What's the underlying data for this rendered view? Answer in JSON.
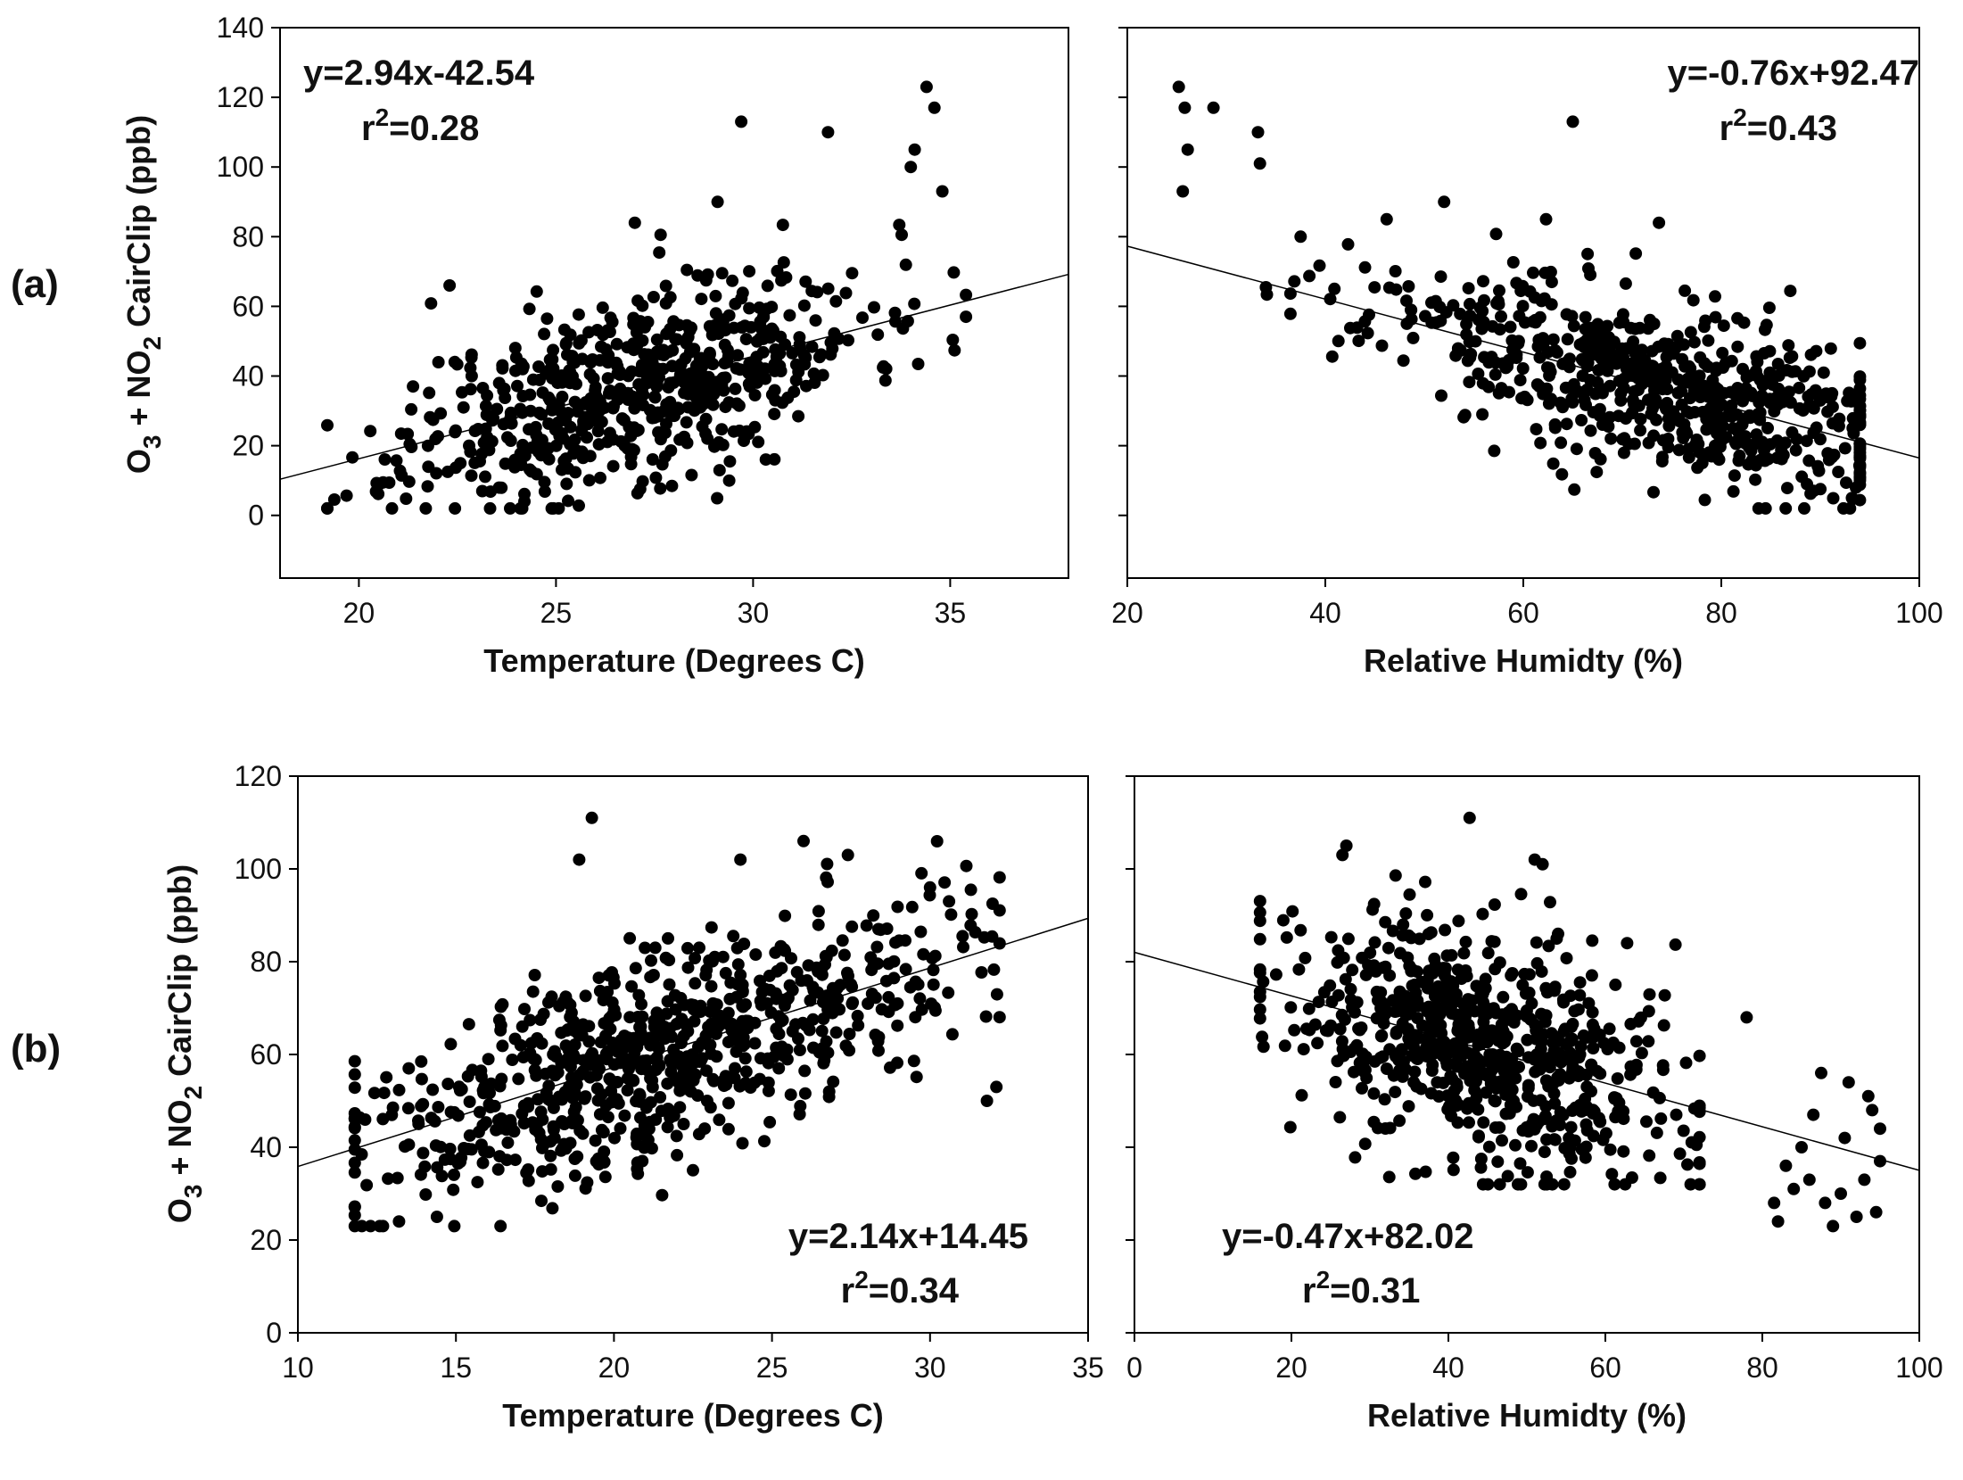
{
  "figure": {
    "panel_a_label": "(a)",
    "panel_b_label": "(b)",
    "ylabel_parts": [
      "O",
      "3",
      " + NO",
      "2",
      " CairClip (ppb)"
    ]
  },
  "chart_data": [
    {
      "id": "a-temp",
      "type": "scatter",
      "xlabel": "Temperature (Degrees C)",
      "ylabel": "O3 + NO2 CairClip (ppb)",
      "xlim": [
        18,
        38
      ],
      "ylim": [
        -18,
        140
      ],
      "xticks": [
        20,
        25,
        30,
        35
      ],
      "yticks": [
        0,
        20,
        40,
        60,
        80,
        100,
        120,
        140
      ],
      "show_yticks": true,
      "equation": "y=2.94x-42.54",
      "r2_prefix": "r",
      "r2_sup": "2",
      "r2_value": "=0.28",
      "fit": {
        "slope": 2.94,
        "intercept": -42.54,
        "range": [
          18,
          38
        ]
      },
      "points": {
        "count": 640,
        "x_mean": 27,
        "x_sd": 2.9,
        "x_range": [
          19.2,
          35.4
        ],
        "noise_sd": 13.5,
        "y_range": [
          2,
          124
        ],
        "seed": 11
      },
      "extra_points": [
        [
          24.1,
          2
        ],
        [
          24.2,
          4
        ],
        [
          29.7,
          113
        ],
        [
          31.9,
          110
        ],
        [
          34.4,
          123
        ],
        [
          34.6,
          117
        ],
        [
          34.1,
          105
        ],
        [
          34.8,
          93
        ],
        [
          34.0,
          100
        ],
        [
          27.0,
          84
        ],
        [
          29.1,
          90
        ],
        [
          22.3,
          66
        ],
        [
          35.4,
          57
        ]
      ]
    },
    {
      "id": "a-rh",
      "type": "scatter",
      "xlabel": "Relative Humidty (%)",
      "ylabel": "",
      "xlim": [
        20,
        100
      ],
      "ylim": [
        -18,
        140
      ],
      "xticks": [
        20,
        40,
        60,
        80,
        100
      ],
      "yticks": [
        0,
        20,
        40,
        60,
        80,
        100,
        120,
        140
      ],
      "show_yticks": false,
      "equation": "y=-0.76x+92.47",
      "r2_prefix": "r",
      "r2_sup": "2",
      "r2_value": "=0.43",
      "fit": {
        "slope": -0.76,
        "intercept": 92.47,
        "range": [
          20,
          100
        ]
      },
      "points": {
        "count": 640,
        "x_mean": 72,
        "x_sd": 14,
        "x_range": [
          34,
          94
        ],
        "noise_sd": 12,
        "y_range": [
          2,
          86
        ],
        "seed": 23
      },
      "extra_points": [
        [
          25.2,
          123
        ],
        [
          25.8,
          117
        ],
        [
          28.7,
          117
        ],
        [
          26.1,
          105
        ],
        [
          25.6,
          93
        ],
        [
          33.2,
          110
        ],
        [
          33.4,
          101
        ],
        [
          65.0,
          113
        ],
        [
          37.5,
          80
        ],
        [
          46.2,
          85
        ],
        [
          52.0,
          90
        ],
        [
          73.7,
          84
        ],
        [
          62.3,
          85
        ],
        [
          93.0,
          2
        ],
        [
          93.2,
          5
        ]
      ]
    },
    {
      "id": "b-temp",
      "type": "scatter",
      "xlabel": "Temperature (Degrees C)",
      "ylabel": "O3 + NO2 CairClip (ppb)",
      "xlim": [
        10,
        35
      ],
      "ylim": [
        0,
        120
      ],
      "xticks": [
        10,
        15,
        20,
        25,
        30,
        35
      ],
      "yticks": [
        0,
        20,
        40,
        60,
        80,
        100,
        120
      ],
      "show_yticks": true,
      "equation": "y=2.14x+14.45",
      "r2_prefix": "r",
      "r2_sup": "2",
      "r2_value": "=0.34",
      "fit": {
        "slope": 2.14,
        "intercept": 14.45,
        "range": [
          10,
          35
        ]
      },
      "points": {
        "count": 760,
        "x_mean": 21.5,
        "x_sd": 4.6,
        "x_range": [
          11.8,
          32.2
        ],
        "noise_sd": 11,
        "y_range": [
          23,
          106
        ],
        "seed": 37
      },
      "extra_points": [
        [
          19.3,
          111
        ],
        [
          18.9,
          102
        ],
        [
          12.3,
          23
        ],
        [
          13.2,
          24
        ],
        [
          14.4,
          25
        ],
        [
          30.0,
          96
        ],
        [
          30.6,
          93
        ],
        [
          31.8,
          50
        ],
        [
          32.1,
          53
        ],
        [
          27.4,
          103
        ],
        [
          26.0,
          106
        ],
        [
          24.0,
          102
        ]
      ]
    },
    {
      "id": "b-rh",
      "type": "scatter",
      "xlabel": "Relative Humidty (%)",
      "ylabel": "",
      "xlim": [
        0,
        100
      ],
      "ylim": [
        0,
        120
      ],
      "xticks": [
        0,
        20,
        40,
        60,
        80,
        100
      ],
      "yticks": [
        0,
        20,
        40,
        60,
        80,
        100,
        120
      ],
      "show_yticks": false,
      "equation": "y=-0.47x+82.02",
      "r2_prefix": "r",
      "r2_sup": "2",
      "r2_value": "=0.31",
      "fit": {
        "slope": -0.47,
        "intercept": 82.02,
        "range": [
          0,
          100
        ]
      },
      "points": {
        "count": 700,
        "x_mean": 45,
        "x_sd": 13,
        "x_range": [
          16,
          72
        ],
        "noise_sd": 13,
        "y_range": [
          32,
          106
        ],
        "seed": 53
      },
      "extra_points": [
        [
          42.7,
          111
        ],
        [
          27.0,
          105
        ],
        [
          26.5,
          103
        ],
        [
          51.0,
          102
        ],
        [
          52.0,
          101
        ],
        [
          86.0,
          33
        ],
        [
          88.0,
          28
        ],
        [
          90.0,
          30
        ],
        [
          91.0,
          54
        ],
        [
          94.0,
          48
        ],
        [
          95.0,
          44
        ],
        [
          92.0,
          25
        ],
        [
          94.5,
          26
        ],
        [
          83.0,
          36
        ],
        [
          82.0,
          24
        ],
        [
          85.0,
          40
        ],
        [
          87.5,
          56
        ],
        [
          93.5,
          51
        ],
        [
          78.0,
          68
        ],
        [
          81.5,
          28
        ],
        [
          89.0,
          23
        ],
        [
          95.0,
          37
        ],
        [
          84.0,
          31
        ],
        [
          93.0,
          33
        ],
        [
          90.5,
          42
        ],
        [
          86.5,
          47
        ]
      ]
    }
  ]
}
